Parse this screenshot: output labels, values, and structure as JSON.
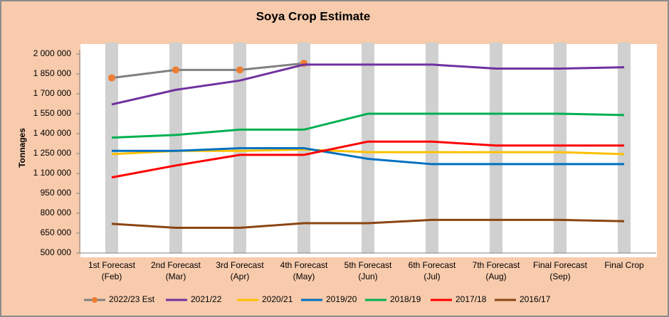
{
  "chart_data": {
    "type": "line",
    "title": "Soya Crop Estimate",
    "y_label": "Tonnages",
    "categories": [
      "1st Forecast (Feb)",
      "2nd Forecast (Mar)",
      "3rd Forecast (Apr)",
      "4th Forecast (May)",
      "5th Forecast (Jun)",
      "6th Forecast (Jul)",
      "7th Forecast (Aug)",
      "Final Forecast (Sep)",
      "Final Crop"
    ],
    "ylim": [
      500000,
      2000000
    ],
    "yticks": [
      {
        "value": 500000,
        "label": "500 000"
      },
      {
        "value": 650000,
        "label": "650 000"
      },
      {
        "value": 800000,
        "label": "800 000"
      },
      {
        "value": 950000,
        "label": "950 000"
      },
      {
        "value": 1100000,
        "label": "1 100 000"
      },
      {
        "value": 1250000,
        "label": "1 250 000"
      },
      {
        "value": 1400000,
        "label": "1 400 000"
      },
      {
        "value": 1550000,
        "label": "1 550 000"
      },
      {
        "value": 1700000,
        "label": "1 700 000"
      },
      {
        "value": 1850000,
        "label": "1 850 000"
      },
      {
        "value": 2000000,
        "label": "2 000 000"
      }
    ],
    "series": [
      {
        "name": "2022/23 Est",
        "color": "#808080",
        "marker_color": "#ed7d31",
        "values": [
          1820000,
          1880000,
          1880000,
          1930000,
          null,
          null,
          null,
          null,
          null
        ]
      },
      {
        "name": "2021/22",
        "color": "#7030a0",
        "values": [
          1620000,
          1730000,
          1800000,
          1920000,
          1920000,
          1920000,
          1890000,
          1890000,
          1900000
        ]
      },
      {
        "name": "2020/21",
        "color": "#ffc000",
        "values": [
          1245000,
          1270000,
          1270000,
          1280000,
          1260000,
          1260000,
          1260000,
          1260000,
          1245000
        ]
      },
      {
        "name": "2019/20",
        "color": "#0070c0",
        "values": [
          1270000,
          1270000,
          1290000,
          1290000,
          1210000,
          1170000,
          1170000,
          1170000,
          1170000
        ]
      },
      {
        "name": "2018/19",
        "color": "#00b050",
        "values": [
          1370000,
          1390000,
          1430000,
          1430000,
          1550000,
          1550000,
          1550000,
          1550000,
          1540000
        ]
      },
      {
        "name": "2017/18",
        "color": "#ff0000",
        "values": [
          1070000,
          1160000,
          1240000,
          1240000,
          1340000,
          1340000,
          1310000,
          1310000,
          1310000
        ]
      },
      {
        "name": "2016/17",
        "color": "#8b4513",
        "values": [
          720000,
          690000,
          690000,
          725000,
          725000,
          750000,
          750000,
          750000,
          740000
        ]
      }
    ]
  }
}
